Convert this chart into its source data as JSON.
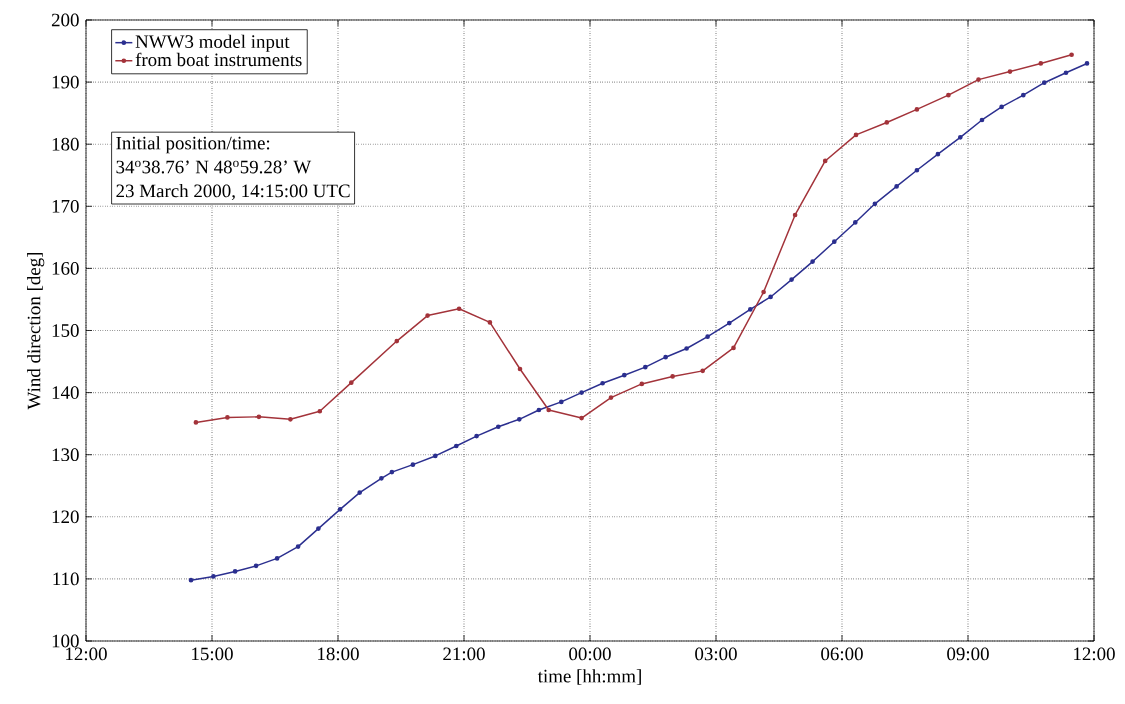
{
  "chart_data": {
    "type": "line",
    "xlabel": "time [hh:mm]",
    "ylabel": "Wind direction  [deg]",
    "annotations": [
      "Initial position/time:",
      "34$^{o}$38.76’ N 48$^{o}$59.28’ W",
      "23 March 2000, 14:15:00 UTC"
    ],
    "series": [
      {
        "name": "NWW3 model input",
        "color": "#2b2f8f",
        "x": [
          "2000-03-23T14:30",
          "2000-03-23T15:02",
          "2000-03-23T15:33",
          "2000-03-23T16:03",
          "2000-03-23T16:33",
          "2000-03-23T17:03",
          "2000-03-23T17:32",
          "2000-03-23T18:03",
          "2000-03-23T18:31",
          "2000-03-23T19:02",
          "2000-03-23T19:17",
          "2000-03-23T19:47",
          "2000-03-23T20:19",
          "2000-03-23T20:49",
          "2000-03-23T21:18",
          "2000-03-23T21:49",
          "2000-03-23T22:19",
          "2000-03-23T22:47",
          "2000-03-23T23:19",
          "2000-03-23T23:48",
          "2000-03-24T00:18",
          "2000-03-24T00:49",
          "2000-03-24T01:19",
          "2000-03-24T01:48",
          "2000-03-24T02:18",
          "2000-03-24T02:48",
          "2000-03-24T03:19",
          "2000-03-24T03:49",
          "2000-03-24T04:18",
          "2000-03-24T04:48",
          "2000-03-24T05:18",
          "2000-03-24T05:49",
          "2000-03-24T06:19",
          "2000-03-24T06:47",
          "2000-03-24T07:18",
          "2000-03-24T07:47",
          "2000-03-24T08:17",
          "2000-03-24T08:49",
          "2000-03-24T09:20",
          "2000-03-24T09:48",
          "2000-03-24T10:19",
          "2000-03-24T10:49",
          "2000-03-24T11:20",
          "2000-03-24T11:50"
        ],
        "values": [
          109.8,
          110.4,
          111.2,
          112.1,
          113.3,
          115.2,
          118.1,
          121.2,
          123.9,
          126.2,
          127.2,
          128.4,
          129.8,
          131.4,
          133.0,
          134.5,
          135.7,
          137.2,
          138.5,
          140.0,
          141.5,
          142.8,
          144.1,
          145.7,
          147.1,
          149.0,
          151.2,
          153.4,
          155.4,
          158.2,
          161.1,
          164.3,
          167.4,
          170.4,
          173.2,
          175.8,
          178.4,
          181.1,
          183.9,
          186.0,
          187.9,
          189.9,
          191.5,
          193.0
        ]
      },
      {
        "name": "from boat instruments",
        "color": "#a3333a",
        "x": [
          "2000-03-23T14:37",
          "2000-03-23T15:22",
          "2000-03-23T16:07",
          "2000-03-23T16:52",
          "2000-03-23T17:34",
          "2000-03-23T18:19",
          "2000-03-23T19:24",
          "2000-03-23T20:08",
          "2000-03-23T20:53",
          "2000-03-23T21:37",
          "2000-03-23T22:20",
          "2000-03-23T23:01",
          "2000-03-23T23:48",
          "2000-03-24T00:30",
          "2000-03-24T01:14",
          "2000-03-24T01:58",
          "2000-03-24T02:41",
          "2000-03-24T03:25",
          "2000-03-24T04:08",
          "2000-03-24T04:53",
          "2000-03-24T05:36",
          "2000-03-24T06:20",
          "2000-03-24T07:04",
          "2000-03-24T07:47",
          "2000-03-24T08:32",
          "2000-03-24T09:15",
          "2000-03-24T10:00",
          "2000-03-24T10:44",
          "2000-03-24T11:28"
        ],
        "values": [
          135.2,
          136.0,
          136.1,
          135.7,
          137.0,
          141.6,
          148.3,
          152.4,
          153.5,
          151.3,
          143.8,
          137.2,
          135.9,
          139.2,
          141.4,
          142.6,
          143.5,
          147.2,
          156.2,
          168.6,
          177.3,
          181.5,
          183.5,
          185.6,
          187.9,
          190.4,
          191.7,
          193.0,
          194.4
        ]
      }
    ],
    "xlim": [
      "2000-03-23T12:00",
      "2000-03-24T12:00"
    ],
    "xticks": [
      {
        "value": "2000-03-23T12:00",
        "label": "12:00"
      },
      {
        "value": "2000-03-23T15:00",
        "label": "15:00"
      },
      {
        "value": "2000-03-23T18:00",
        "label": "18:00"
      },
      {
        "value": "2000-03-23T21:00",
        "label": "21:00"
      },
      {
        "value": "2000-03-24T00:00",
        "label": "00:00"
      },
      {
        "value": "2000-03-24T03:00",
        "label": "03:00"
      },
      {
        "value": "2000-03-24T06:00",
        "label": "06:00"
      },
      {
        "value": "2000-03-24T09:00",
        "label": "09:00"
      },
      {
        "value": "2000-03-24T12:00",
        "label": "12:00"
      }
    ],
    "ylim": [
      100,
      200
    ],
    "yticks": [
      100,
      110,
      120,
      130,
      140,
      150,
      160,
      170,
      180,
      190,
      200
    ],
    "grid": true,
    "legend": "top left",
    "marker": "circle",
    "line_style": "solid"
  }
}
